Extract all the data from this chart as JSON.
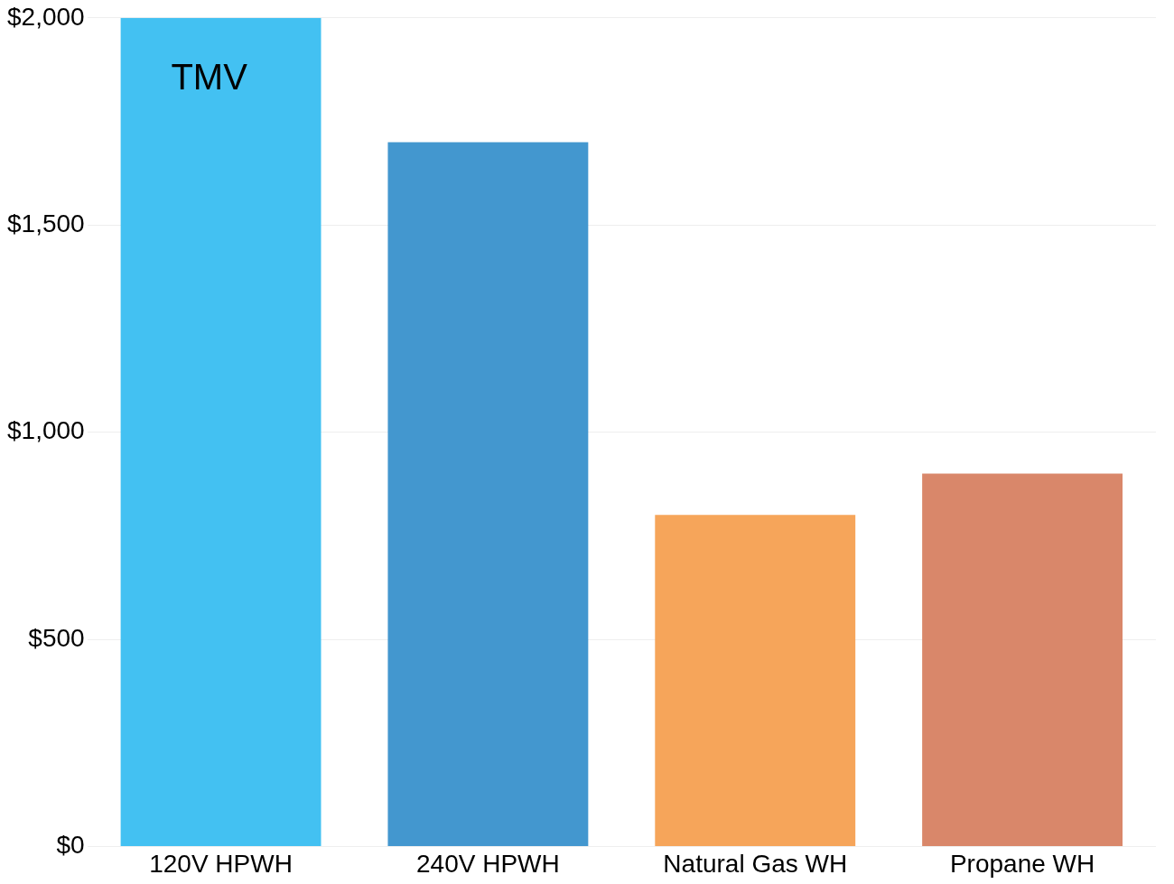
{
  "chart_data": {
    "type": "bar",
    "categories": [
      "120V HPWH",
      "240V HPWH",
      "Natural Gas WH",
      "Propane WH"
    ],
    "values": [
      2000,
      1700,
      800,
      900
    ],
    "colors": [
      "#43c1f2",
      "#4397cf",
      "#f6a55a",
      "#d9876a"
    ],
    "ylim": [
      0,
      2000
    ],
    "yticks": [
      {
        "value": 0,
        "label": "$0"
      },
      {
        "value": 500,
        "label": "$500"
      },
      {
        "value": 1000,
        "label": "$1,000"
      },
      {
        "value": 1500,
        "label": "$1,500"
      },
      {
        "value": 2000,
        "label": "$2,000"
      }
    ],
    "grid": "y",
    "annotations": [
      "TMV"
    ]
  }
}
